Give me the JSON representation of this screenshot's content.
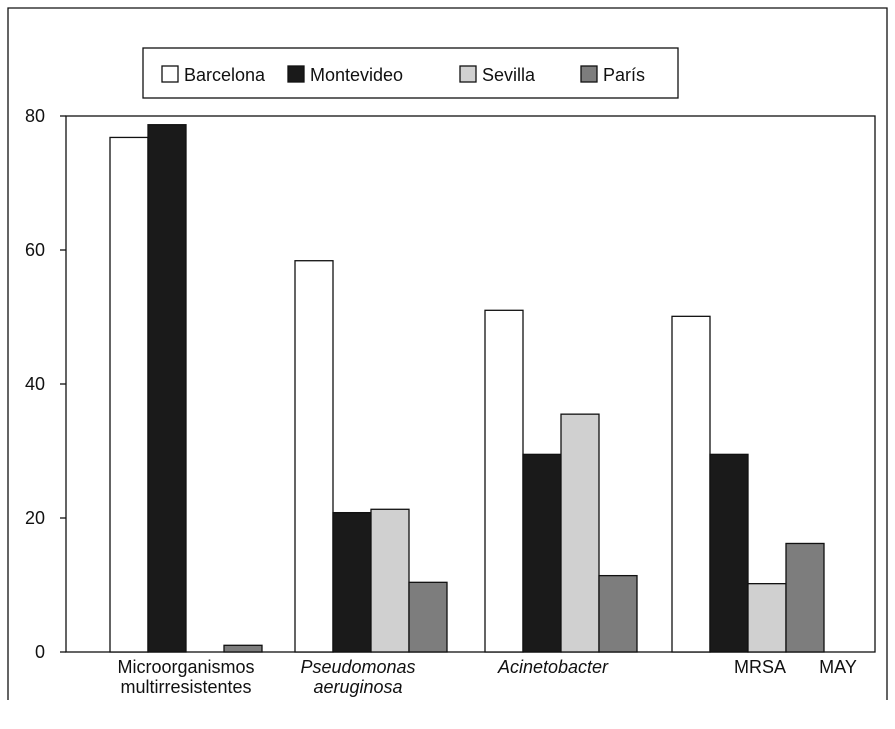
{
  "chart_data": {
    "type": "bar",
    "title": "",
    "xlabel": "",
    "ylabel": "",
    "ylim": [
      0,
      80
    ],
    "yticks": [
      0,
      20,
      40,
      60,
      80
    ],
    "grid": false,
    "legend_position": "top",
    "categories": [
      {
        "lines": [
          "Microorganismos",
          "multirresistentes"
        ],
        "italic": false
      },
      {
        "lines": [
          "Pseudomonas",
          "aeruginosa"
        ],
        "italic": true
      },
      {
        "lines": [
          "Acinetobacter"
        ],
        "italic": true
      },
      {
        "lines": [
          "MRSA"
        ],
        "italic": false
      }
    ],
    "series": [
      {
        "name": "Barcelona",
        "color": "#ffffff",
        "values": [
          76.8,
          58.4,
          51,
          50.1
        ]
      },
      {
        "name": "Montevideo",
        "color": "#1a1a1a",
        "values": [
          78.7,
          20.8,
          29.5,
          29.5
        ]
      },
      {
        "name": "Sevilla",
        "color": "#d0d0d0",
        "values": [
          null,
          21.3,
          35.5,
          10.2
        ]
      },
      {
        "name": "París",
        "color": "#7d7d7d",
        "values": [
          1,
          10.4,
          11.4,
          16.2
        ]
      }
    ],
    "extra_axis_label": "MAY"
  }
}
